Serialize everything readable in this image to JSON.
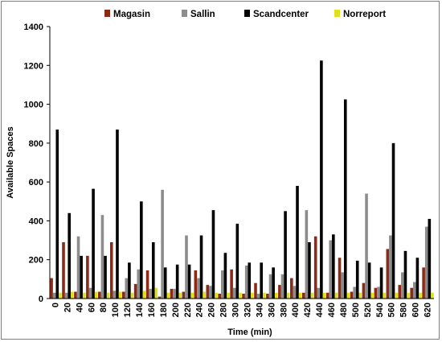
{
  "chart_data": {
    "type": "bar",
    "title": "",
    "xlabel": "Time (min)",
    "ylabel": "Available Spaces",
    "ylim": [
      0,
      1400
    ],
    "yticks": [
      0,
      200,
      400,
      600,
      800,
      1000,
      1200,
      1400
    ],
    "legend_position": "top",
    "grid": false,
    "categories": [
      "0",
      "20",
      "40",
      "60",
      "80",
      "100",
      "120",
      "140",
      "160",
      "180",
      "200",
      "220",
      "240",
      "260",
      "280",
      "300",
      "320",
      "340",
      "360",
      "380",
      "400",
      "420",
      "440",
      "460",
      "480",
      "500",
      "520",
      "540",
      "560",
      "580",
      "600",
      "620"
    ],
    "series": [
      {
        "name": "Magasin",
        "color": "#8b2a17",
        "values": [
          105,
          290,
          35,
          220,
          35,
          290,
          35,
          75,
          145,
          10,
          50,
          35,
          145,
          70,
          25,
          150,
          25,
          80,
          25,
          70,
          105,
          30,
          320,
          30,
          210,
          35,
          80,
          55,
          255,
          70,
          55,
          160
        ]
      },
      {
        "name": "Sallin",
        "color": "#8c8c8c",
        "values": [
          30,
          30,
          320,
          55,
          430,
          40,
          105,
          150,
          50,
          560,
          50,
          325,
          105,
          65,
          145,
          55,
          170,
          25,
          125,
          125,
          65,
          455,
          55,
          300,
          135,
          60,
          540,
          60,
          325,
          135,
          85,
          370
        ]
      },
      {
        "name": "Scandcenter",
        "color": "#000000",
        "values": [
          870,
          440,
          220,
          565,
          220,
          870,
          185,
          500,
          290,
          160,
          175,
          175,
          325,
          455,
          235,
          385,
          185,
          185,
          160,
          450,
          580,
          290,
          1225,
          330,
          1025,
          195,
          185,
          160,
          800,
          245,
          210,
          410
        ]
      },
      {
        "name": "Norreport",
        "color": "#e0e020",
        "values": [
          30,
          35,
          30,
          35,
          30,
          35,
          30,
          40,
          55,
          30,
          30,
          30,
          35,
          30,
          30,
          30,
          30,
          30,
          30,
          30,
          30,
          30,
          30,
          30,
          30,
          30,
          30,
          30,
          30,
          30,
          30,
          30
        ]
      }
    ]
  }
}
